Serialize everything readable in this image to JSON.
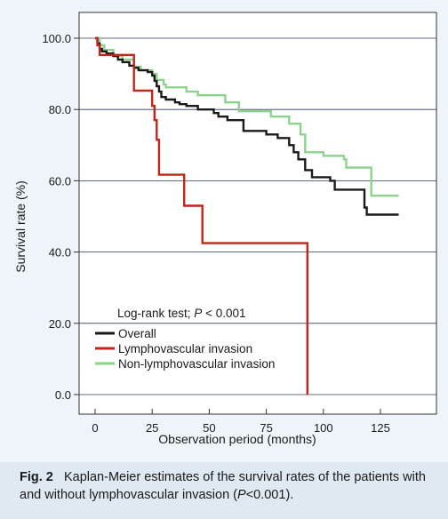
{
  "chart_data": {
    "type": "line",
    "step": true,
    "xlabel": "Observation period (months)",
    "ylabel": "Survival rate (%)",
    "xlim": [
      -5,
      138
    ],
    "ylim": [
      0,
      100
    ],
    "x_ticks": [
      0,
      25,
      50,
      75,
      100,
      125
    ],
    "y_ticks": [
      0,
      20,
      40,
      60,
      80,
      100
    ],
    "x_tick_labels": [
      "0",
      "25",
      "50",
      "75",
      "100",
      "125"
    ],
    "y_tick_labels": [
      "0.0",
      "20.0",
      "40.0",
      "60.0",
      "80.0",
      "100.0"
    ],
    "grid": "horizontal",
    "legend_position": "bottom-left",
    "annotation": {
      "prefix": "Log-rank test; ",
      "p_symbol": "P",
      "suffix": " < 0.001"
    },
    "series": [
      {
        "name": "Overall",
        "color": "#1a1a1a",
        "points": [
          [
            0,
            100
          ],
          [
            1,
            98.5
          ],
          [
            2,
            97
          ],
          [
            3,
            96.3
          ],
          [
            5,
            95.7
          ],
          [
            8,
            95
          ],
          [
            10,
            94
          ],
          [
            12,
            93.3
          ],
          [
            15,
            92.3
          ],
          [
            17,
            91.7
          ],
          [
            19,
            91
          ],
          [
            23,
            90.5
          ],
          [
            25,
            89.5
          ],
          [
            26,
            88
          ],
          [
            27,
            86.5
          ],
          [
            28,
            85
          ],
          [
            29,
            83.5
          ],
          [
            31,
            82.8
          ],
          [
            35,
            82
          ],
          [
            37,
            81.5
          ],
          [
            40,
            81
          ],
          [
            45,
            80
          ],
          [
            52,
            79
          ],
          [
            54,
            78
          ],
          [
            58,
            77
          ],
          [
            65,
            74
          ],
          [
            75,
            73
          ],
          [
            80,
            72
          ],
          [
            85,
            70
          ],
          [
            87,
            68
          ],
          [
            89,
            66
          ],
          [
            92,
            63
          ],
          [
            95,
            61
          ],
          [
            103,
            60
          ],
          [
            105,
            57.5
          ],
          [
            116,
            57.5
          ],
          [
            118,
            52.5
          ],
          [
            119,
            50.5
          ],
          [
            133,
            50.5
          ]
        ]
      },
      {
        "name": "Lymphovascular invasion",
        "color": "#c0261b",
        "points": [
          [
            0,
            100
          ],
          [
            1,
            98
          ],
          [
            2,
            95.3
          ],
          [
            5,
            95.3
          ],
          [
            17,
            85.3
          ],
          [
            24,
            85.3
          ],
          [
            25,
            81
          ],
          [
            26,
            77
          ],
          [
            27,
            71.5
          ],
          [
            28,
            61.7
          ],
          [
            39,
            53
          ],
          [
            47,
            42.5
          ],
          [
            93,
            42.5
          ],
          [
            93,
            0
          ]
        ]
      },
      {
        "name": "Non-lymphovascular invasion",
        "color": "#8ed38b",
        "points": [
          [
            0,
            100
          ],
          [
            2,
            98
          ],
          [
            4,
            96.7
          ],
          [
            8,
            95
          ],
          [
            12,
            94
          ],
          [
            17,
            92
          ],
          [
            20,
            91
          ],
          [
            25,
            90
          ],
          [
            27,
            88.3
          ],
          [
            30,
            87
          ],
          [
            31,
            86.2
          ],
          [
            40,
            85
          ],
          [
            45,
            84
          ],
          [
            57,
            82
          ],
          [
            63,
            79.5
          ],
          [
            77,
            78
          ],
          [
            85,
            76
          ],
          [
            90,
            73
          ],
          [
            92,
            68
          ],
          [
            100,
            67
          ],
          [
            109,
            66
          ],
          [
            110,
            63.7
          ],
          [
            120,
            63.7
          ],
          [
            121,
            55.8
          ],
          [
            133,
            55.8
          ]
        ]
      }
    ]
  },
  "caption": {
    "label": "Fig. 2",
    "text_before": "Kaplan-Meier estimates of the survival rates of the patients with and without lymphovascular invasion (",
    "p_symbol": "P",
    "text_after": "<0.001)."
  }
}
